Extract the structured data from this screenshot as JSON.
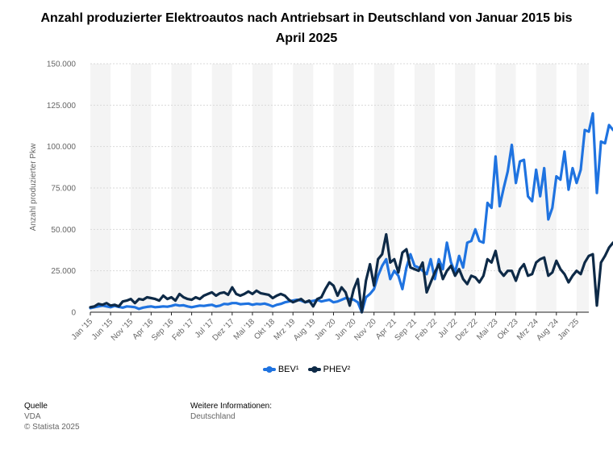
{
  "title": "Anzahl produzierter Elektroautos nach Antriebsart in Deutschland von Januar 2015 bis April 2025",
  "colors": {
    "bev": "#1f73e0",
    "phev": "#0e2a47",
    "grid": "#d9d9d9",
    "band": "#f4f4f4"
  },
  "footer": {
    "source_head": "Quelle",
    "source_lines": [
      "VDA",
      "© Statista 2025"
    ],
    "info_head": "Weitere Informationen:",
    "info_lines": [
      "Deutschland"
    ]
  },
  "chart_data": {
    "type": "line",
    "title": "Anzahl produzierter Elektroautos nach Antriebsart in Deutschland von Januar 2015 bis April 2025",
    "ylabel": "Anzahl produzierter Pkw",
    "xlabel": "",
    "ylim": [
      0,
      150000
    ],
    "y_ticks": [
      "0",
      "25.000",
      "50.000",
      "75.000",
      "100.000",
      "125.000",
      "150.000"
    ],
    "y_tick_values": [
      0,
      25000,
      50000,
      75000,
      100000,
      125000,
      150000
    ],
    "x_labels": [
      "Jan '15",
      "Jun '15",
      "Nov '15",
      "Apr '16",
      "Sep '16",
      "Feb '17",
      "Jul '17",
      "Dez '17",
      "Mai '18",
      "Okt '18",
      "Mrz '19",
      "Aug '19",
      "Jan '20",
      "Jun '20",
      "Nov '20",
      "Apr '21",
      "Sep '21",
      "Feb '22",
      "Jul '22",
      "Dez '22",
      "Mai '23",
      "Okt '23",
      "Mrz '24",
      "Aug '24",
      "Jan '25"
    ],
    "x_start": "2015-01",
    "x_end": "2025-04",
    "grid": true,
    "legend_position": "bottom",
    "series": [
      {
        "name": "BEV¹",
        "values": [
          2500,
          3000,
          3500,
          4000,
          3500,
          3000,
          3800,
          3200,
          2800,
          3500,
          3300,
          3000,
          2000,
          2800,
          3200,
          3500,
          3000,
          3200,
          3500,
          3300,
          3800,
          4500,
          4000,
          4200,
          3500,
          3000,
          3500,
          4000,
          3800,
          4200,
          4500,
          3500,
          4000,
          5000,
          4800,
          5500,
          5500,
          4800,
          5000,
          5200,
          4500,
          5000,
          4800,
          5200,
          4500,
          3500,
          4500,
          5000,
          6000,
          6500,
          7000,
          7500,
          7000,
          6000,
          6500,
          6800,
          7500,
          6500,
          7000,
          7500,
          6000,
          6500,
          7500,
          8500,
          8000,
          7500,
          6000,
          0,
          9000,
          11000,
          14000,
          22000,
          28000,
          32000,
          20000,
          25000,
          22000,
          14000,
          27000,
          35000,
          28000,
          27000,
          25000,
          23000,
          32000,
          20000,
          32000,
          26000,
          42000,
          30000,
          24000,
          34000,
          27000,
          42000,
          43000,
          50000,
          43000,
          42000,
          66000,
          63000,
          94000,
          64000,
          75000,
          85000,
          101000,
          78000,
          91000,
          92000,
          70000,
          67000,
          86000,
          70000,
          87000,
          56000,
          63000,
          82000,
          80000,
          97000,
          74000,
          87000,
          78000,
          86000,
          110000,
          109000,
          120000,
          72000,
          103000,
          102000,
          113000,
          110000
        ]
      },
      {
        "name": "PHEV²",
        "values": [
          3000,
          3500,
          5000,
          4500,
          5500,
          4000,
          4500,
          3500,
          6500,
          7000,
          8000,
          5500,
          8000,
          7500,
          9000,
          8500,
          8000,
          7000,
          10000,
          8000,
          9000,
          7000,
          11000,
          9000,
          8000,
          7500,
          9000,
          8000,
          10000,
          11000,
          12000,
          10000,
          11500,
          12000,
          10500,
          15000,
          11000,
          10000,
          11000,
          12500,
          11000,
          13000,
          11500,
          11000,
          10500,
          8500,
          10000,
          11000,
          10000,
          7500,
          6000,
          7000,
          8000,
          6000,
          7000,
          3500,
          8000,
          9000,
          14000,
          18000,
          16000,
          10000,
          15000,
          12000,
          4000,
          14000,
          20000,
          0,
          19000,
          29000,
          16000,
          32000,
          35000,
          47000,
          30000,
          32000,
          24000,
          36000,
          38000,
          27000,
          26000,
          25000,
          30000,
          12000,
          18000,
          24000,
          29000,
          20000,
          25000,
          28000,
          22000,
          26000,
          20000,
          17000,
          22000,
          21000,
          18000,
          22000,
          32000,
          30000,
          37000,
          25000,
          22000,
          25000,
          25000,
          19000,
          26000,
          29000,
          22000,
          23000,
          30000,
          32000,
          33000,
          22000,
          24000,
          31000,
          26000,
          23000,
          18000,
          22000,
          25000,
          23000,
          30000,
          34000,
          35000,
          4000,
          30000,
          34000,
          39000,
          42000
        ]
      }
    ]
  }
}
